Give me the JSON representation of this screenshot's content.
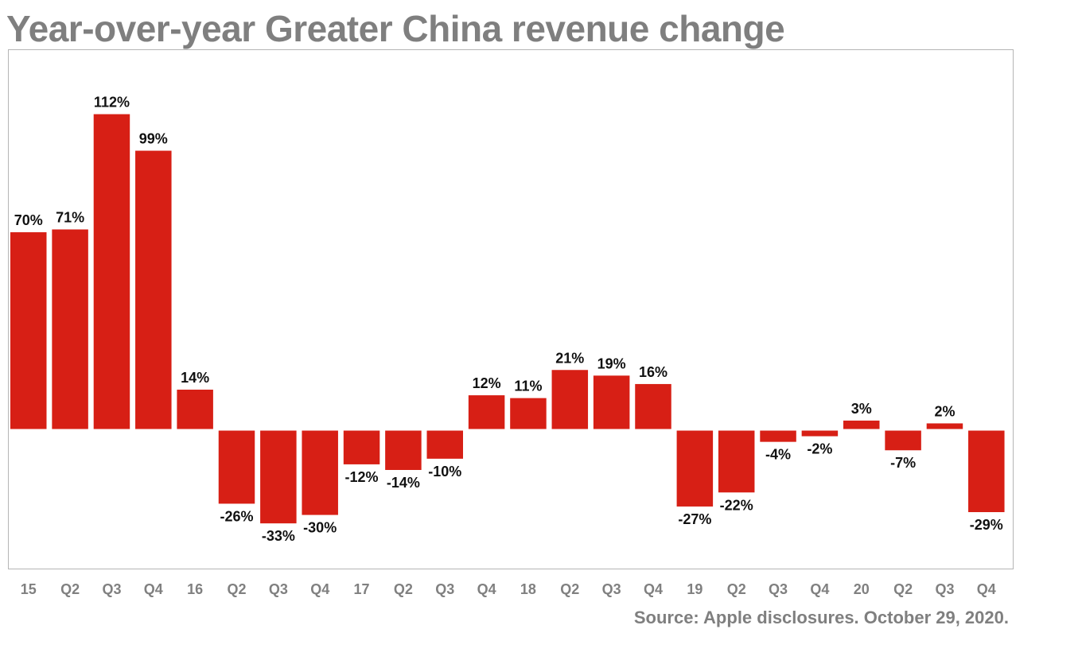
{
  "chart_data": {
    "type": "bar",
    "title": "Year-over-year Greater China revenue change",
    "xlabel": "",
    "ylabel": "",
    "categories": [
      "15",
      "Q2",
      "Q3",
      "Q4",
      "16",
      "Q2",
      "Q3",
      "Q4",
      "17",
      "Q2",
      "Q3",
      "Q4",
      "18",
      "Q2",
      "Q3",
      "Q4",
      "19",
      "Q2",
      "Q3",
      "Q4",
      "20",
      "Q2",
      "Q3",
      "Q4"
    ],
    "values": [
      70,
      71,
      112,
      99,
      14,
      -26,
      -33,
      -30,
      -12,
      -14,
      -10,
      12,
      11,
      21,
      19,
      16,
      -27,
      -22,
      -4,
      -2,
      3,
      -7,
      2,
      -29
    ],
    "value_labels": [
      "70%",
      "71%",
      "112%",
      "99%",
      "14%",
      "-26%",
      "-33%",
      "-30%",
      "-12%",
      "-14%",
      "-10%",
      "12%",
      "11%",
      "21%",
      "19%",
      "16%",
      "-27%",
      "-22%",
      "-4%",
      "-2%",
      "3%",
      "-7%",
      "2%",
      "-29%"
    ],
    "ylim": [
      -50,
      120
    ],
    "grid": false,
    "legend": "none",
    "bar_color": "#d71f15",
    "source": "Source: Apple disclosures. October 29, 2020."
  }
}
